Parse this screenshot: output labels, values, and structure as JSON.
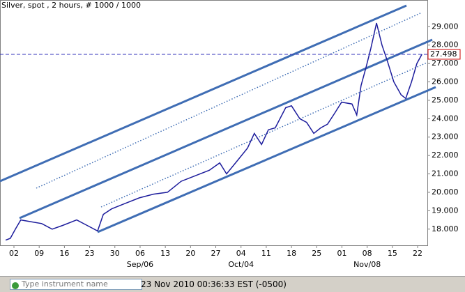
{
  "chart_data": {
    "type": "line",
    "title": "Silver, spot , 2 hours, # 1000 / 1000",
    "x": [
      -2.3,
      -1.0,
      0.4,
      1.9,
      4.8,
      7.7,
      10.6,
      13.5,
      17.4,
      20.3,
      23.2,
      24.8,
      27.1,
      30.9,
      34.8,
      38.7,
      42.6,
      46.4,
      50.3,
      54.2,
      57.1,
      59.0,
      61.9,
      64.8,
      66.7,
      68.7,
      70.6,
      72.5,
      75.4,
      77.0,
      79.3,
      81.2,
      83.2,
      85.1,
      87.0,
      89.0,
      90.9,
      93.8,
      95.1,
      96.3,
      97.7,
      99.0,
      100.6,
      102.1,
      103.5,
      105.4,
      107.4,
      108.7,
      110.3,
      111.8,
      113.2
    ],
    "values": [
      17.4,
      17.5,
      18.0,
      18.5,
      18.4,
      18.3,
      18.0,
      18.2,
      18.5,
      18.2,
      17.9,
      18.8,
      19.1,
      19.4,
      19.7,
      19.9,
      20.0,
      20.6,
      20.9,
      21.2,
      21.6,
      21.0,
      21.7,
      22.4,
      23.2,
      22.6,
      23.4,
      23.5,
      24.6,
      24.7,
      24.0,
      23.8,
      23.2,
      23.5,
      23.7,
      24.3,
      24.9,
      24.8,
      24.2,
      25.8,
      26.8,
      27.8,
      29.2,
      28.0,
      27.2,
      26.0,
      25.3,
      25.1,
      26.0,
      27.0,
      27.5
    ],
    "color": "#1c1c9c",
    "last_price": 27.498,
    "xlim": [
      -3.87,
      114.7
    ],
    "xticks": [
      {
        "value": 0,
        "label": "02"
      },
      {
        "value": 7,
        "label": "09"
      },
      {
        "value": 14,
        "label": "16"
      },
      {
        "value": 21,
        "label": "23"
      },
      {
        "value": 28,
        "label": "30"
      },
      {
        "value": 35,
        "label": "06"
      },
      {
        "value": 42,
        "label": "13"
      },
      {
        "value": 49,
        "label": "20"
      },
      {
        "value": 56,
        "label": "27"
      },
      {
        "value": 63,
        "label": "04"
      },
      {
        "value": 70,
        "label": "11"
      },
      {
        "value": 77,
        "label": "18"
      },
      {
        "value": 84,
        "label": "25"
      },
      {
        "value": 91,
        "label": "01"
      },
      {
        "value": 98,
        "label": "08"
      },
      {
        "value": 105,
        "label": "15"
      },
      {
        "value": 112,
        "label": "22"
      }
    ],
    "month_ticks": [
      {
        "value": 35,
        "label": "Sep/06"
      },
      {
        "value": 63,
        "label": "Oct/04"
      },
      {
        "value": 98,
        "label": "Nov/08"
      }
    ],
    "ylim": [
      17.12,
      30.45
    ],
    "yticks": [
      {
        "value": 18,
        "label": "18.000"
      },
      {
        "value": 19,
        "label": "19.000"
      },
      {
        "value": 20,
        "label": "20.000"
      },
      {
        "value": 21,
        "label": "21.000"
      },
      {
        "value": 22,
        "label": "22.000"
      },
      {
        "value": 23,
        "label": "23.000"
      },
      {
        "value": 24,
        "label": "24.000"
      },
      {
        "value": 25,
        "label": "25.000"
      },
      {
        "value": 26,
        "label": "26.000"
      },
      {
        "value": 27,
        "label": "27.000"
      },
      {
        "value": 28,
        "label": "28.000"
      },
      {
        "value": 29,
        "label": "29.000"
      }
    ],
    "grid": false
  },
  "status_bar": {
    "search_placeholder": "Type instrument name",
    "clock": "23 Nov 2010 00:36:33  EST (-0500)"
  }
}
